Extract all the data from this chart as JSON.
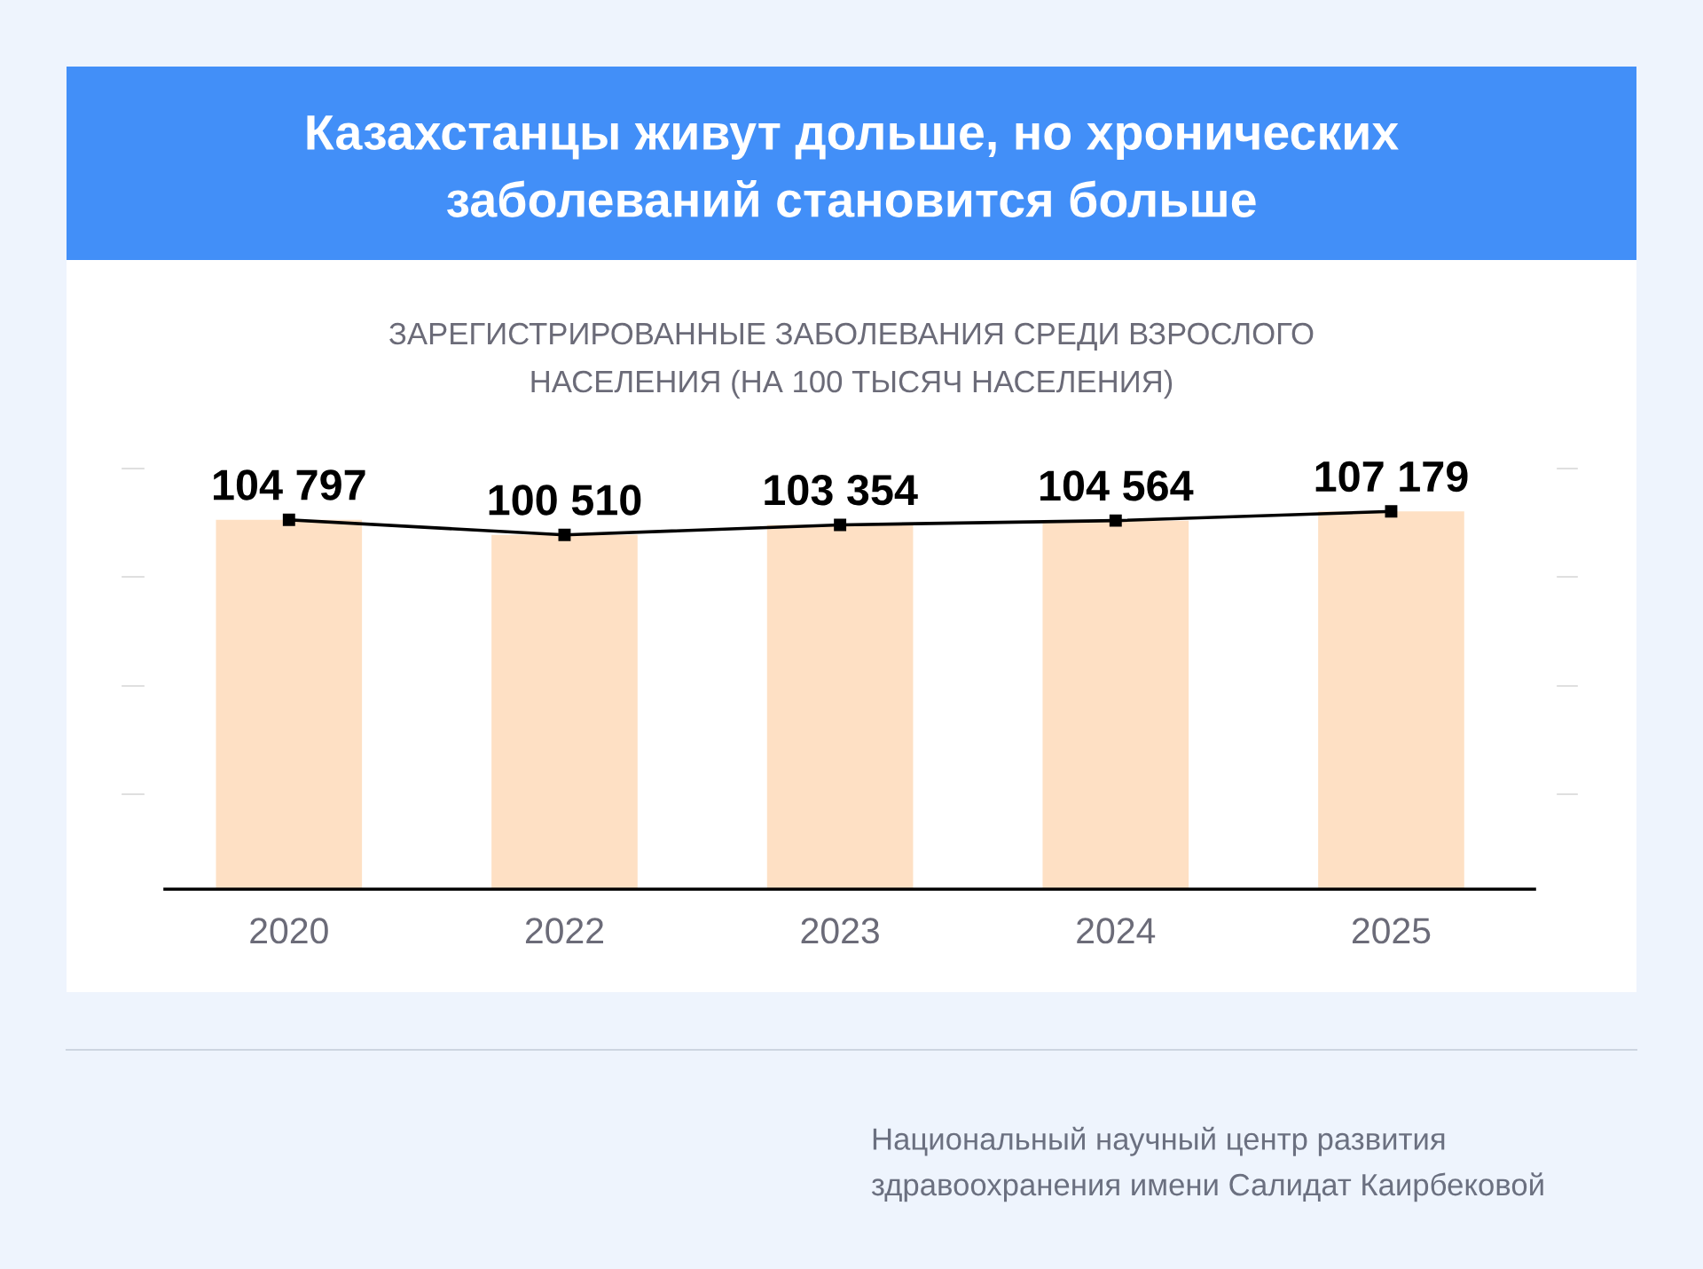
{
  "chart_data": {
    "type": "bar",
    "title": "Казахстанцы живут дольше, но хронических заболеваний становится больше",
    "subtitle": "ЗАРЕГИСТРИРОВАННЫЕ ЗАБОЛЕВАНИЯ СРЕДИ ВЗРОСЛОГО НАСЕЛЕНИЯ (НА 100 ТЫСЯЧ НАСЕЛЕНИЯ)",
    "annotations": [
      "Национальный научный центр развития здравоохранения имени Салидат Каирбековой"
    ],
    "categories": [
      "2020",
      "2022",
      "2023",
      "2024",
      "2025"
    ],
    "series": [
      {
        "color": "#fee0c4",
        "values": [
          104797,
          100510,
          103354,
          104564,
          107179
        ]
      },
      {
        "type": "line",
        "color": "#000000",
        "marker": "square",
        "line_style": "solid",
        "values": [
          104797,
          100510,
          103354,
          104564,
          107179
        ],
        "value_labels": [
          "104 797",
          "100 510",
          "103 354",
          "104 564",
          "107 179"
        ]
      }
    ],
    "tick_labels": "x",
    "grid": false
  }
}
